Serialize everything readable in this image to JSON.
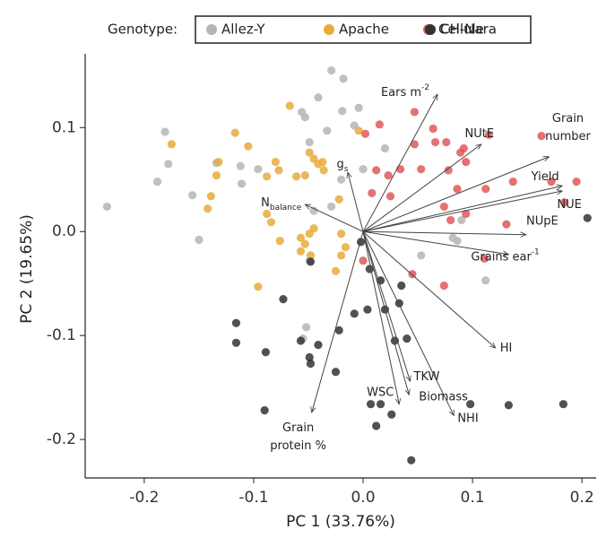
{
  "chart_data": {
    "type": "scatter",
    "xlabel": "PC 1 (33.76%)",
    "ylabel": "PC 2 (19.65%)",
    "legend_title": "Genotype:",
    "legend_position": "top",
    "xlim": [
      -0.254,
      0.213
    ],
    "ylim": [
      -0.237,
      0.171
    ],
    "xticks": [
      -0.2,
      -0.1,
      {
        "value": 0,
        "label": "0.0"
      },
      0.1,
      0.2
    ],
    "yticks": [
      -0.2,
      -0.1,
      {
        "value": 0,
        "label": "0.0"
      },
      0.1
    ],
    "series": [
      {
        "name": "Allez-Y",
        "color": "#b5b5b5",
        "x": [
          -0.234,
          -0.188,
          -0.181,
          -0.178,
          -0.15,
          -0.156,
          -0.134,
          -0.112,
          -0.096,
          -0.111,
          -0.029,
          -0.018,
          -0.041,
          -0.056,
          -0.019,
          -0.053,
          -0.049,
          -0.033,
          -0.008,
          -0.004,
          0.02,
          0.0,
          -0.02,
          -0.029,
          -0.049,
          -0.052,
          -0.055,
          0.086,
          0.082,
          0.112,
          0.09,
          0.053,
          -0.045
        ],
        "y": [
          0.024,
          0.048,
          0.096,
          0.065,
          -0.008,
          0.035,
          0.066,
          0.063,
          0.06,
          0.046,
          0.155,
          0.147,
          0.129,
          0.115,
          0.116,
          0.11,
          0.086,
          0.097,
          0.102,
          0.119,
          0.08,
          0.06,
          0.05,
          0.024,
          -0.028,
          -0.092,
          -0.103,
          -0.009,
          -0.006,
          -0.047,
          0.011,
          -0.023,
          0.02
        ]
      },
      {
        "name": "Apache",
        "color": "#e8aa3c",
        "x": [
          -0.175,
          -0.132,
          -0.134,
          -0.139,
          -0.142,
          -0.117,
          -0.105,
          -0.088,
          -0.077,
          -0.08,
          -0.067,
          -0.049,
          -0.045,
          -0.041,
          -0.037,
          -0.036,
          -0.061,
          -0.053,
          -0.088,
          -0.084,
          -0.076,
          -0.057,
          -0.053,
          -0.049,
          -0.045,
          -0.057,
          -0.048,
          -0.022,
          -0.02,
          -0.016,
          -0.02,
          -0.025,
          -0.096,
          -0.004
        ],
        "y": [
          0.084,
          0.067,
          0.054,
          0.034,
          0.022,
          0.095,
          0.082,
          0.053,
          0.059,
          0.067,
          0.121,
          0.076,
          0.07,
          0.065,
          0.067,
          0.059,
          0.053,
          0.054,
          0.017,
          0.009,
          -0.009,
          -0.006,
          -0.012,
          -0.002,
          0.003,
          -0.019,
          -0.023,
          0.031,
          -0.002,
          -0.015,
          -0.023,
          -0.038,
          -0.053,
          0.097
        ]
      },
      {
        "name": "Cellule",
        "color": "#e05858",
        "x": [
          0.047,
          0.015,
          0.002,
          0.064,
          0.076,
          0.066,
          0.092,
          0.089,
          0.115,
          0.163,
          0.047,
          0.023,
          0.034,
          0.053,
          0.078,
          0.086,
          0.094,
          0.112,
          0.137,
          0.172,
          0.195,
          0.184,
          0.131,
          0.074,
          0.008,
          0.025,
          0.111,
          0.074,
          0.045,
          0.0,
          0.012,
          0.08,
          0.094
        ],
        "y": [
          0.115,
          0.103,
          0.094,
          0.099,
          0.086,
          0.086,
          0.08,
          0.076,
          0.093,
          0.092,
          0.084,
          0.054,
          0.06,
          0.06,
          0.059,
          0.041,
          0.067,
          0.041,
          0.048,
          0.048,
          0.048,
          0.028,
          0.007,
          0.024,
          0.037,
          0.034,
          -0.026,
          -0.052,
          -0.041,
          -0.028,
          0.059,
          0.011,
          0.017
        ]
      },
      {
        "name": "CH-Nara",
        "color": "#333333",
        "x": [
          0.205,
          0.183,
          0.133,
          0.098,
          -0.002,
          -0.048,
          -0.073,
          -0.116,
          -0.116,
          -0.089,
          -0.09,
          -0.057,
          -0.049,
          -0.041,
          -0.048,
          -0.025,
          -0.022,
          0.004,
          0.006,
          0.016,
          0.02,
          0.035,
          0.033,
          0.029,
          0.04,
          0.007,
          0.016,
          0.026,
          0.012,
          0.044,
          -0.008
        ],
        "y": [
          0.013,
          -0.166,
          -0.167,
          -0.166,
          -0.01,
          -0.029,
          -0.065,
          -0.088,
          -0.107,
          -0.116,
          -0.172,
          -0.105,
          -0.121,
          -0.109,
          -0.127,
          -0.135,
          -0.095,
          -0.075,
          -0.036,
          -0.047,
          -0.075,
          -0.052,
          -0.069,
          -0.105,
          -0.103,
          -0.166,
          -0.166,
          -0.176,
          -0.187,
          -0.22,
          -0.079
        ]
      }
    ],
    "loadings": [
      {
        "lines": [
          "Ears m"
        ],
        "sup": "-2",
        "x": 0.068,
        "y": 0.132
      },
      {
        "lines": [
          "NUtE"
        ],
        "x": 0.108,
        "y": 0.084
      },
      {
        "lines": [
          "Grain",
          "number"
        ],
        "x": 0.17,
        "y": 0.072
      },
      {
        "lines": [
          "Yield"
        ],
        "x": 0.182,
        "y": 0.044
      },
      {
        "lines": [
          "NUE"
        ],
        "x": 0.182,
        "y": 0.039
      },
      {
        "lines": [
          "NUpE"
        ],
        "x": 0.149,
        "y": -0.003
      },
      {
        "lines": [
          "Grains ear"
        ],
        "sup": "-1",
        "x": 0.133,
        "y": -0.022
      },
      {
        "lines": [
          "HI"
        ],
        "x": 0.121,
        "y": -0.112
      },
      {
        "lines": [
          "TKW"
        ],
        "x": 0.043,
        "y": -0.144
      },
      {
        "lines": [
          "Biomass"
        ],
        "x": 0.042,
        "y": -0.157
      },
      {
        "lines": [
          "NHI"
        ],
        "x": 0.083,
        "y": -0.177
      },
      {
        "lines": [
          "WSC"
        ],
        "x": 0.033,
        "y": -0.166
      },
      {
        "lines": [
          "Grain",
          "protein %"
        ],
        "x": -0.047,
        "y": -0.174
      },
      {
        "lines": [
          "g"
        ],
        "sub": "s",
        "x": -0.014,
        "y": 0.057
      },
      {
        "lines": [
          "N"
        ],
        "sub": "balance",
        "x": -0.053,
        "y": 0.026
      }
    ]
  }
}
